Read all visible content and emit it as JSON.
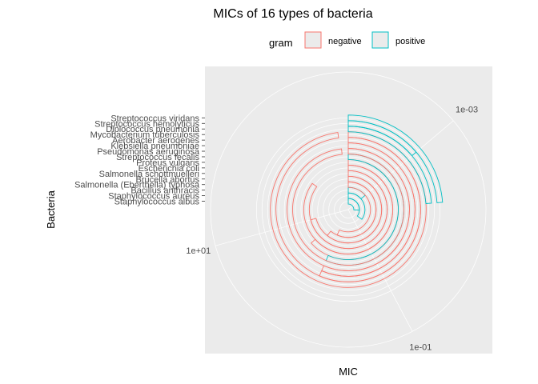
{
  "chart_data": {
    "type": "bar",
    "coord": "polar",
    "title": "MICs of 16 types of bacteria",
    "xlabel": "MIC",
    "ylabel": "Bacteria",
    "theta_scale": "log10",
    "theta_ticks": [
      "1e-03",
      "1e-01",
      "1e+01"
    ],
    "theta_tick_values": [
      0.001,
      0.1,
      10
    ],
    "theta_range": [
      0.000107,
      1130
    ],
    "legend": {
      "title": "gram",
      "position": "top",
      "entries": [
        {
          "name": "negative",
          "color": "#F8766D"
        },
        {
          "name": "positive",
          "color": "#00BFC4"
        }
      ]
    },
    "categories": [
      "Staphylococcus albus",
      "Staphylococcus aureus",
      "Bacillus anthracis",
      "Salmonella (Eberthella) typhosa",
      "Brucella abortus",
      "Salmonella schottmuelleri",
      "Escherichia coli",
      "Proteus vulgaris",
      "Streptococcus fecalis",
      "Pseudomonas aeruginosa",
      "Klebsiella pneumoniae",
      "Aerobacter aerogenes",
      "Mycobacterium tuberculosis",
      "Diplococcus pneumonia",
      "Streptococcus hemolyticus",
      "Streptococcus viridans"
    ],
    "gram": [
      "positive",
      "positive",
      "positive",
      "negative",
      "negative",
      "negative",
      "negative",
      "negative",
      "positive",
      "negative",
      "negative",
      "negative",
      "negative",
      "positive",
      "positive",
      "positive"
    ],
    "values": [
      0.007,
      0.03,
      0.001,
      1,
      2,
      10,
      100,
      3,
      1,
      850,
      1,
      1,
      800,
      0.005,
      0.001,
      0.005
    ]
  }
}
